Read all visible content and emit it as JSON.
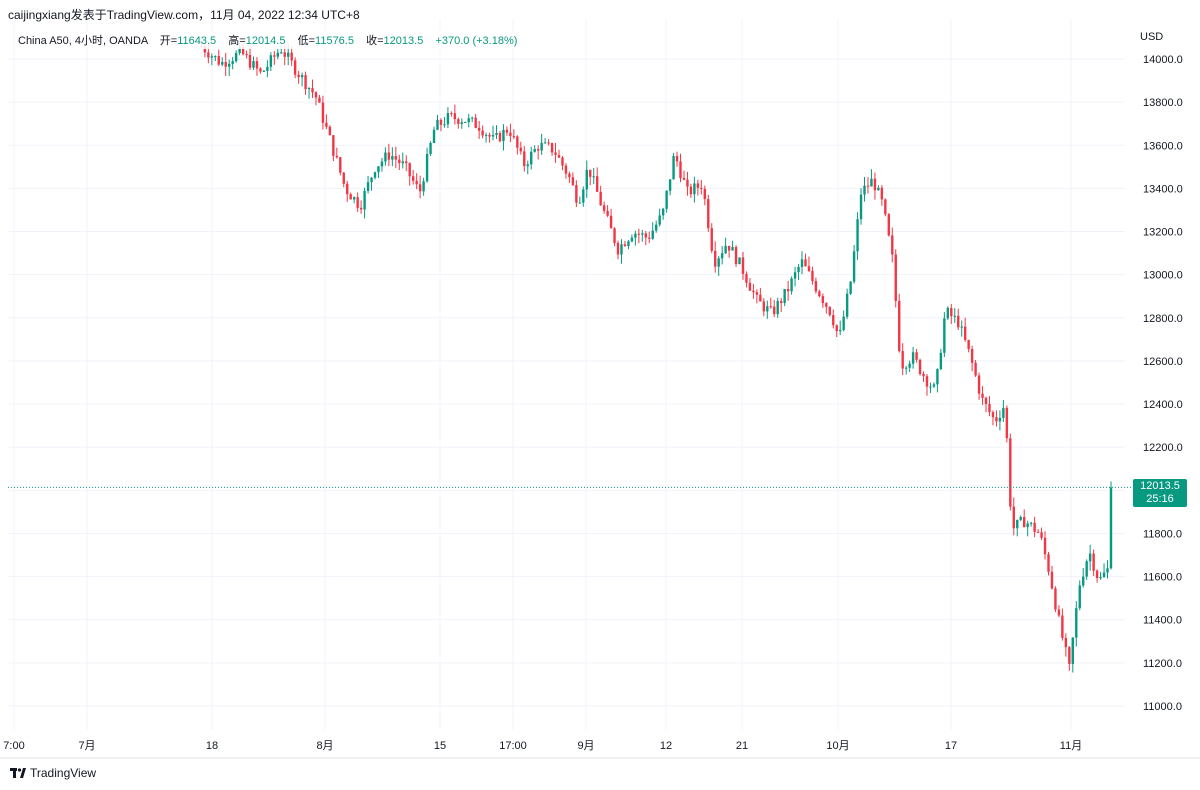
{
  "header": {
    "author_line": "caijingxiang发表于TradingView.com，11月 04, 2022 12:34 UTC+8"
  },
  "legend": {
    "symbol": "China A50, 4小时, OANDA",
    "open_label": "开=",
    "open_value": "11643.5",
    "high_label": "高=",
    "high_value": "12014.5",
    "low_label": "低=",
    "low_value": "11576.5",
    "close_label": "收=",
    "close_value": "12013.5",
    "change_value": "+370.0 (+3.18%)"
  },
  "axis": {
    "currency": "USD"
  },
  "price_tag": {
    "price": "12013.5",
    "countdown": "25:16"
  },
  "brand": {
    "name": "TradingView"
  },
  "colors": {
    "up": "#089981",
    "down": "#f23645",
    "grid": "#f0f3fa",
    "dotted_line": "#089981"
  },
  "chart_data": {
    "type": "candlestick",
    "ylim": [
      10900,
      14150
    ],
    "y_ticks": [
      11000,
      11200,
      11400,
      11600,
      11800,
      12000,
      12200,
      12400,
      12600,
      12800,
      13000,
      13200,
      13400,
      13600,
      13800,
      14000
    ],
    "x_tick_labels": [
      "7:00",
      "7月",
      "18",
      "8月",
      "15",
      "17:00",
      "9月",
      "12",
      "21",
      "10月",
      "17",
      "11月"
    ],
    "last_price": 12013.5,
    "path": [
      [
        0.195,
        14060
      ],
      [
        0.215,
        13980
      ],
      [
        0.235,
        14030
      ],
      [
        0.255,
        13930
      ],
      [
        0.275,
        14050
      ],
      [
        0.295,
        13920
      ],
      [
        0.31,
        13830
      ],
      [
        0.325,
        13620
      ],
      [
        0.34,
        13400
      ],
      [
        0.355,
        13320
      ],
      [
        0.37,
        13500
      ],
      [
        0.385,
        13560
      ],
      [
        0.4,
        13500
      ],
      [
        0.415,
        13380
      ],
      [
        0.43,
        13680
      ],
      [
        0.445,
        13730
      ],
      [
        0.46,
        13720
      ],
      [
        0.475,
        13690
      ],
      [
        0.49,
        13620
      ],
      [
        0.505,
        13680
      ],
      [
        0.52,
        13510
      ],
      [
        0.535,
        13600
      ],
      [
        0.55,
        13580
      ],
      [
        0.565,
        13460
      ],
      [
        0.575,
        13340
      ],
      [
        0.585,
        13500
      ],
      [
        0.6,
        13300
      ],
      [
        0.615,
        13120
      ],
      [
        0.63,
        13200
      ],
      [
        0.645,
        13170
      ],
      [
        0.66,
        13280
      ],
      [
        0.672,
        13560
      ],
      [
        0.685,
        13380
      ],
      [
        0.7,
        13420
      ],
      [
        0.712,
        13060
      ],
      [
        0.725,
        13150
      ],
      [
        0.74,
        13030
      ],
      [
        0.755,
        12880
      ],
      [
        0.77,
        12820
      ],
      [
        0.785,
        12920
      ],
      [
        0.8,
        13060
      ],
      [
        0.815,
        12940
      ],
      [
        0.83,
        12820
      ],
      [
        0.838,
        12700
      ],
      [
        0.85,
        12980
      ],
      [
        0.86,
        13380
      ],
      [
        0.872,
        13440
      ],
      [
        0.882,
        13320
      ],
      [
        0.892,
        13060
      ],
      [
        0.9,
        12580
      ],
      [
        0.912,
        12620
      ],
      [
        0.925,
        12520
      ],
      [
        0.935,
        12460
      ],
      [
        0.945,
        12830
      ],
      [
        0.958,
        12780
      ],
      [
        0.97,
        12620
      ],
      [
        0.982,
        12420
      ],
      [
        0.995,
        12320
      ],
      [
        1.005,
        12400
      ],
      [
        1.012,
        11820
      ],
      [
        1.025,
        11860
      ],
      [
        1.04,
        11800
      ],
      [
        1.05,
        11620
      ],
      [
        1.06,
        11380
      ],
      [
        1.07,
        11170
      ],
      [
        1.08,
        11560
      ],
      [
        1.09,
        11720
      ],
      [
        1.1,
        11580
      ],
      [
        1.11,
        11640
      ],
      [
        1.115,
        12013.5
      ]
    ]
  }
}
